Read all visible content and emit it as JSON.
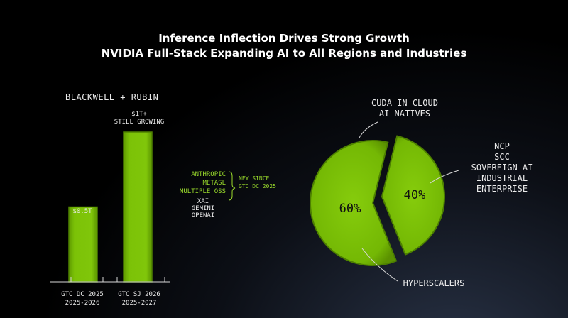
{
  "title": {
    "line1": "Inference Inflection Drives Strong Growth",
    "line2": "NVIDIA Full-Stack Expanding AI to All Regions and Industries"
  },
  "bar_panel": {
    "heading": "BLACKWELL + RUBIN",
    "green_list": [
      "ANTHROPIC",
      "METASL",
      "MULTIPLE OSS"
    ],
    "new_since": [
      "NEW SINCE",
      "GTC DC 2025"
    ],
    "white_list": [
      "XAI",
      "GEMINI",
      "OPENAI"
    ]
  },
  "pie_panel": {
    "label_top": [
      "CUDA IN CLOUD",
      "AI NATIVES"
    ],
    "label_right": [
      "NCP",
      "SCC",
      "SOVEREIGN AI",
      "INDUSTRIAL",
      "ENTERPRISE"
    ],
    "label_bottom": "HYPERSCALERS"
  },
  "chart_data": [
    {
      "type": "bar",
      "title": "BLACKWELL + RUBIN",
      "categories": [
        "GTC DC 2025",
        "GTC SJ 2026"
      ],
      "category_sublabels": [
        "2025-2026",
        "2025-2027"
      ],
      "values": [
        0.5,
        1.0
      ],
      "value_labels": [
        "$0.5T",
        "$1T+"
      ],
      "value_sublabels": [
        "",
        "STILL GROWING"
      ],
      "unit": "$T",
      "ylim": [
        0,
        1.0
      ],
      "color": "#76b900"
    },
    {
      "type": "pie",
      "slices": [
        {
          "label": "60%",
          "value": 60,
          "color": "#76b900"
        },
        {
          "label": "40%",
          "value": 40,
          "color": "#76b900"
        }
      ]
    }
  ]
}
